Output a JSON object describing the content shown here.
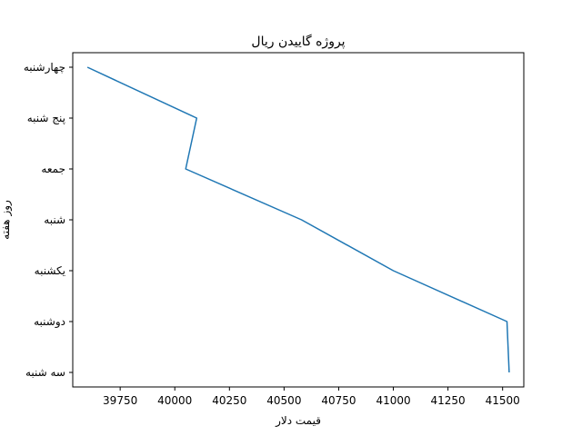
{
  "chart_data": {
    "type": "line",
    "title": "پروژه گاییدن ریال",
    "xlabel": "قیمت دلار",
    "ylabel": "روز هفته",
    "categories": [
      "سه شنبه",
      "دوشنبه",
      "یکشنبه",
      "شنبه",
      "جمعه",
      "پنج شنبه",
      "چهارشنبه"
    ],
    "series": [
      {
        "color": "#1f77b4",
        "points": [
          {
            "day": "چهارشنبه",
            "value": 39600
          },
          {
            "day": "پنج شنبه",
            "value": 40100
          },
          {
            "day": "جمعه",
            "value": 40050
          },
          {
            "day": "شنبه",
            "value": 40580
          },
          {
            "day": "یکشنبه",
            "value": 41000
          },
          {
            "day": "دوشنبه",
            "value": 41520
          },
          {
            "day": "سه شنبه",
            "value": 41530
          }
        ]
      }
    ],
    "xticks": [
      39750,
      40000,
      40250,
      40500,
      40750,
      41000,
      41250,
      41500
    ],
    "xlim": [
      39533,
      41597
    ],
    "grid": false,
    "legend": "none"
  }
}
